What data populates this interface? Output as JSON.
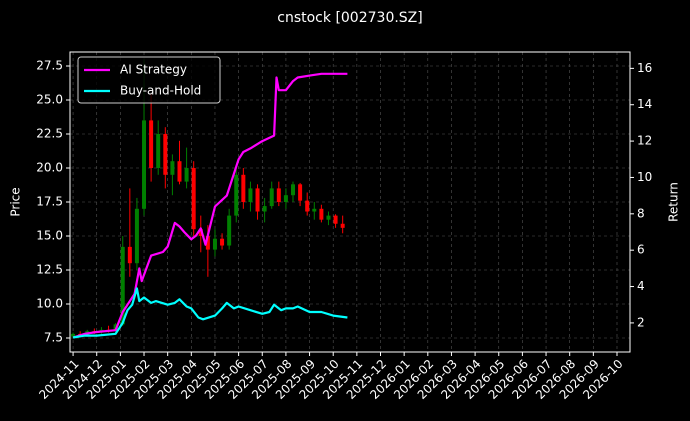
{
  "chart_data": {
    "type": "candlestick",
    "title": "cnstock [002730.SZ]",
    "y_label": "Price",
    "y2_label": "Return",
    "grid": true,
    "legend": "upper left",
    "up_color": "#008000",
    "down_color": "#ff0000",
    "xlim": [
      -0.13,
      23.55
    ],
    "xticks": [
      {
        "value": 0,
        "label": "2024-11"
      },
      {
        "value": 1,
        "label": "2024-12"
      },
      {
        "value": 2,
        "label": "2025-01"
      },
      {
        "value": 3,
        "label": "2025-02"
      },
      {
        "value": 4,
        "label": "2025-03"
      },
      {
        "value": 5,
        "label": "2025-04"
      },
      {
        "value": 6,
        "label": "2025-05"
      },
      {
        "value": 7,
        "label": "2025-06"
      },
      {
        "value": 8,
        "label": "2025-07"
      },
      {
        "value": 9,
        "label": "2025-08"
      },
      {
        "value": 10,
        "label": "2025-09"
      },
      {
        "value": 11,
        "label": "2025-10"
      },
      {
        "value": 12,
        "label": "2025-11"
      },
      {
        "value": 13,
        "label": "2025-12"
      },
      {
        "value": 14,
        "label": "2026-01"
      },
      {
        "value": 15,
        "label": "2026-02"
      },
      {
        "value": 16,
        "label": "2026-03"
      },
      {
        "value": 17,
        "label": "2026-04"
      },
      {
        "value": 18,
        "label": "2026-05"
      },
      {
        "value": 19,
        "label": "2026-06"
      },
      {
        "value": 20,
        "label": "2026-07"
      },
      {
        "value": 21,
        "label": "2026-08"
      },
      {
        "value": 22,
        "label": "2026-09"
      },
      {
        "value": 23,
        "label": "2026-10"
      }
    ],
    "ylim": [
      6.47,
      28.53
    ],
    "yticks": [
      7.5,
      {
        "value": 10,
        "label": "10.0"
      },
      12.5,
      {
        "value": 15,
        "label": "15.0"
      },
      17.5,
      {
        "value": 20,
        "label": "20.0"
      },
      22.5,
      {
        "value": 25,
        "label": "25.0"
      },
      27.5
    ],
    "y2lim": [
      0.4,
      16.9
    ],
    "y2ticks": [
      2,
      4,
      6,
      8,
      10,
      12,
      14,
      16
    ],
    "x": [
      0.0,
      0.3,
      0.6,
      0.9,
      1.2,
      1.5,
      1.8,
      2.1,
      2.4,
      2.7,
      3.0,
      3.3,
      3.6,
      3.9,
      4.2,
      4.5,
      4.8,
      5.1,
      5.4,
      5.7,
      6.0,
      6.3,
      6.6,
      6.9,
      7.2,
      7.5,
      7.8,
      8.1,
      8.4,
      8.7,
      9.0,
      9.3,
      9.6,
      9.9,
      10.2,
      10.5,
      10.8,
      11.1,
      11.4
    ],
    "open": [
      7.6,
      7.8,
      7.7,
      8.0,
      7.9,
      8.1,
      8.0,
      8.5,
      14.2,
      13.0,
      17.0,
      23.5,
      20.0,
      22.5,
      19.5,
      20.5,
      19.0,
      20.0,
      15.5,
      15.0,
      14.0,
      14.8,
      14.3,
      16.5,
      19.5,
      17.5,
      18.5,
      16.8,
      17.2,
      18.5,
      17.5,
      18.0,
      18.8,
      17.6,
      16.8,
      17.0,
      16.2,
      16.5,
      15.9
    ],
    "high": [
      7.9,
      8.0,
      8.1,
      8.2,
      8.3,
      8.4,
      8.6,
      15.0,
      18.5,
      17.8,
      28.0,
      25.5,
      23.5,
      23.0,
      21.0,
      22.0,
      21.5,
      20.5,
      16.5,
      15.8,
      15.5,
      15.2,
      17.0,
      20.0,
      20.0,
      19.0,
      18.8,
      17.8,
      19.0,
      19.0,
      18.5,
      19.0,
      18.9,
      18.2,
      17.5,
      17.3,
      16.8,
      16.6,
      16.5
    ],
    "low": [
      7.5,
      7.6,
      7.6,
      7.8,
      7.8,
      7.9,
      7.9,
      8.4,
      12.0,
      12.5,
      16.5,
      19.0,
      19.5,
      18.5,
      18.0,
      18.8,
      18.5,
      15.0,
      13.8,
      12.0,
      13.5,
      14.0,
      14.0,
      16.0,
      17.0,
      16.8,
      16.2,
      16.0,
      17.0,
      17.2,
      17.0,
      17.5,
      17.2,
      16.5,
      16.2,
      16.0,
      15.8,
      15.6,
      15.2
    ],
    "close": [
      7.8,
      7.7,
      8.0,
      7.9,
      8.1,
      8.0,
      8.5,
      14.2,
      13.0,
      17.0,
      23.5,
      20.0,
      22.5,
      19.5,
      20.5,
      19.0,
      20.0,
      15.5,
      15.0,
      14.0,
      14.8,
      14.3,
      16.5,
      19.5,
      17.5,
      18.5,
      16.8,
      17.2,
      18.5,
      17.5,
      18.0,
      18.8,
      17.6,
      16.8,
      17.0,
      16.2,
      16.5,
      15.9,
      15.6
    ],
    "series": [
      {
        "name": "AI Strategy",
        "color": "#ff00ff",
        "axis": "y2",
        "x": [
          0.0,
          0.5,
          1.0,
          1.8,
          2.1,
          2.3,
          2.6,
          2.8,
          2.9,
          3.3,
          3.8,
          4.0,
          4.3,
          4.5,
          4.7,
          5.0,
          5.2,
          5.4,
          5.6,
          6.0,
          6.5,
          7.0,
          7.2,
          7.5,
          8.0,
          8.5,
          8.6,
          8.7,
          9.0,
          9.3,
          9.5,
          10.0,
          10.5,
          11.0,
          11.6
        ],
        "values": [
          1.2,
          1.4,
          1.5,
          1.6,
          2.6,
          3.0,
          3.6,
          5.0,
          4.3,
          5.7,
          5.9,
          6.2,
          7.5,
          7.3,
          7.0,
          6.6,
          6.8,
          7.2,
          6.3,
          8.4,
          9.0,
          11.0,
          11.4,
          11.6,
          12.0,
          12.3,
          15.5,
          14.8,
          14.8,
          15.3,
          15.5,
          15.6,
          15.7,
          15.7,
          15.7
        ]
      },
      {
        "name": "Buy-and-Hold",
        "color": "#00ffff",
        "axis": "y2",
        "x": [
          0.0,
          0.5,
          1.0,
          1.8,
          2.1,
          2.3,
          2.5,
          2.7,
          2.8,
          3.0,
          3.3,
          3.5,
          4.0,
          4.3,
          4.5,
          4.8,
          5.0,
          5.3,
          5.5,
          6.0,
          6.3,
          6.5,
          6.8,
          7.0,
          7.5,
          8.0,
          8.3,
          8.5,
          8.8,
          9.0,
          9.3,
          9.5,
          10.0,
          10.5,
          11.0,
          11.6
        ],
        "values": [
          1.2,
          1.3,
          1.3,
          1.4,
          2.0,
          2.7,
          3.0,
          3.9,
          3.2,
          3.4,
          3.1,
          3.2,
          3.0,
          3.1,
          3.3,
          2.9,
          2.8,
          2.3,
          2.2,
          2.4,
          2.8,
          3.1,
          2.8,
          2.9,
          2.7,
          2.5,
          2.6,
          3.0,
          2.7,
          2.8,
          2.8,
          2.9,
          2.6,
          2.6,
          2.4,
          2.3
        ]
      }
    ]
  }
}
